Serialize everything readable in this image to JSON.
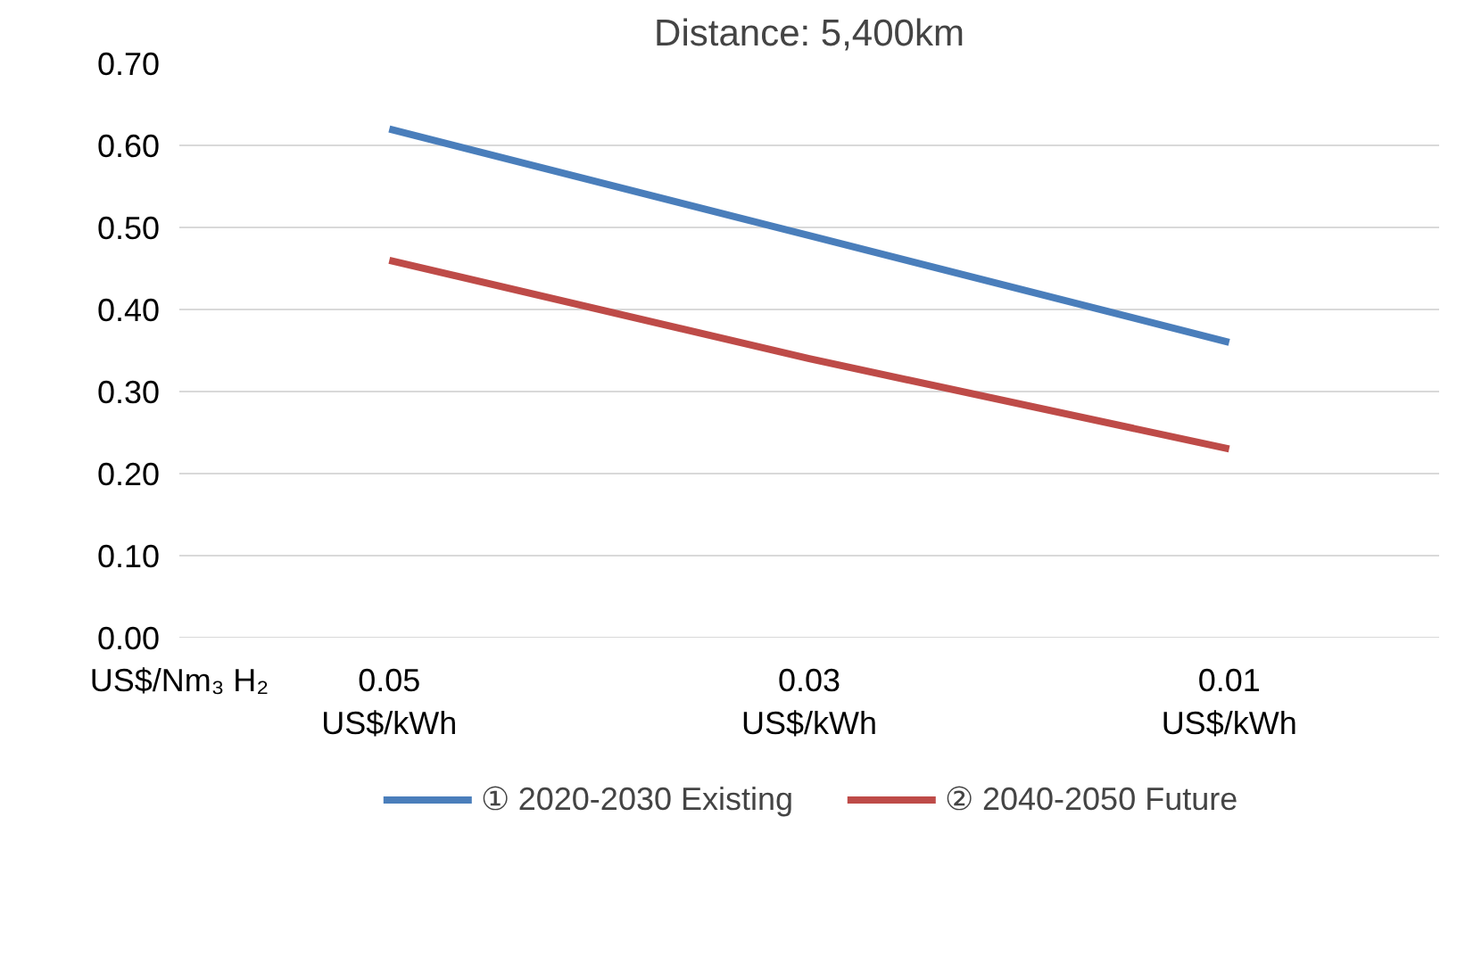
{
  "chart_data": {
    "type": "line",
    "title": "Distance: 5,400km",
    "ylabel": "US$/Nm₃ H₂",
    "categories": [
      "0.05\nUS$/kWh",
      "0.03\nUS$/kWh",
      "0.01\nUS$/kWh"
    ],
    "series": [
      {
        "name": "① 2020-2030 Existing",
        "color": "#4a7ebb",
        "values": [
          0.62,
          0.49,
          0.36
        ]
      },
      {
        "name": "② 2040-2050 Future",
        "color": "#be4b48",
        "values": [
          0.46,
          0.34,
          0.23
        ]
      }
    ],
    "ylim": [
      0,
      0.7
    ],
    "yticks": [
      {
        "value": 0,
        "label": "0.00"
      },
      {
        "value": 0.1,
        "label": "0.10"
      },
      {
        "value": 0.2,
        "label": "0.20"
      },
      {
        "value": 0.3,
        "label": "0.30"
      },
      {
        "value": 0.4,
        "label": "0.40"
      },
      {
        "value": 0.5,
        "label": "0.50"
      },
      {
        "value": 0.6,
        "label": "0.60"
      },
      {
        "value": 0.7,
        "label": "0.70"
      }
    ],
    "grid": "y",
    "legend": "bottom",
    "marker": "none",
    "line_style": "solid"
  }
}
